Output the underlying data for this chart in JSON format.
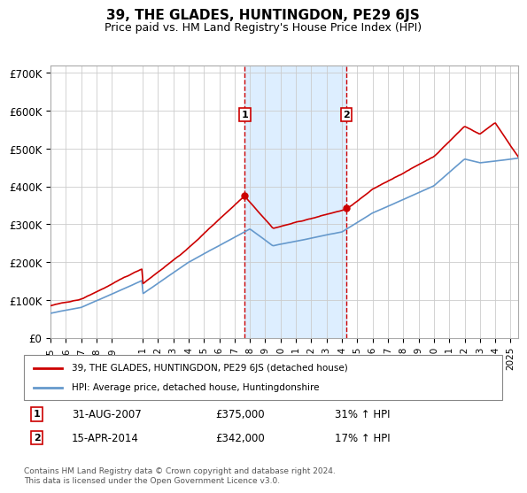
{
  "title": "39, THE GLADES, HUNTINGDON, PE29 6JS",
  "subtitle": "Price paid vs. HM Land Registry's House Price Index (HPI)",
  "ylabel_ticks": [
    "£0",
    "£100K",
    "£200K",
    "£300K",
    "£400K",
    "£500K",
    "£600K",
    "£700K"
  ],
  "ytick_values": [
    0,
    100000,
    200000,
    300000,
    400000,
    500000,
    600000,
    700000
  ],
  "ylim": [
    0,
    720000
  ],
  "xlim_start": 1995.0,
  "xlim_end": 2025.5,
  "sale1_date": 2007.67,
  "sale1_price": 375000,
  "sale1_label": "1",
  "sale2_date": 2014.29,
  "sale2_price": 342000,
  "sale2_label": "2",
  "line_color_red": "#cc0000",
  "line_color_blue": "#6699cc",
  "shaded_region_color": "#ddeeff",
  "grid_color": "#cccccc",
  "background_color": "#ffffff",
  "legend_line1": "39, THE GLADES, HUNTINGDON, PE29 6JS (detached house)",
  "legend_line2": "HPI: Average price, detached house, Huntingdonshire",
  "table_row1_num": "1",
  "table_row1_date": "31-AUG-2007",
  "table_row1_price": "£375,000",
  "table_row1_hpi": "31% ↑ HPI",
  "table_row2_num": "2",
  "table_row2_date": "15-APR-2014",
  "table_row2_price": "£342,000",
  "table_row2_hpi": "17% ↑ HPI",
  "footer": "Contains HM Land Registry data © Crown copyright and database right 2024.\nThis data is licensed under the Open Government Licence v3.0.",
  "xtick_years": [
    1995,
    1996,
    1997,
    1998,
    1999,
    2001,
    2002,
    2003,
    2004,
    2005,
    2006,
    2007,
    2008,
    2009,
    2010,
    2011,
    2012,
    2013,
    2014,
    2015,
    2016,
    2017,
    2018,
    2019,
    2020,
    2021,
    2022,
    2023,
    2024,
    2025
  ]
}
